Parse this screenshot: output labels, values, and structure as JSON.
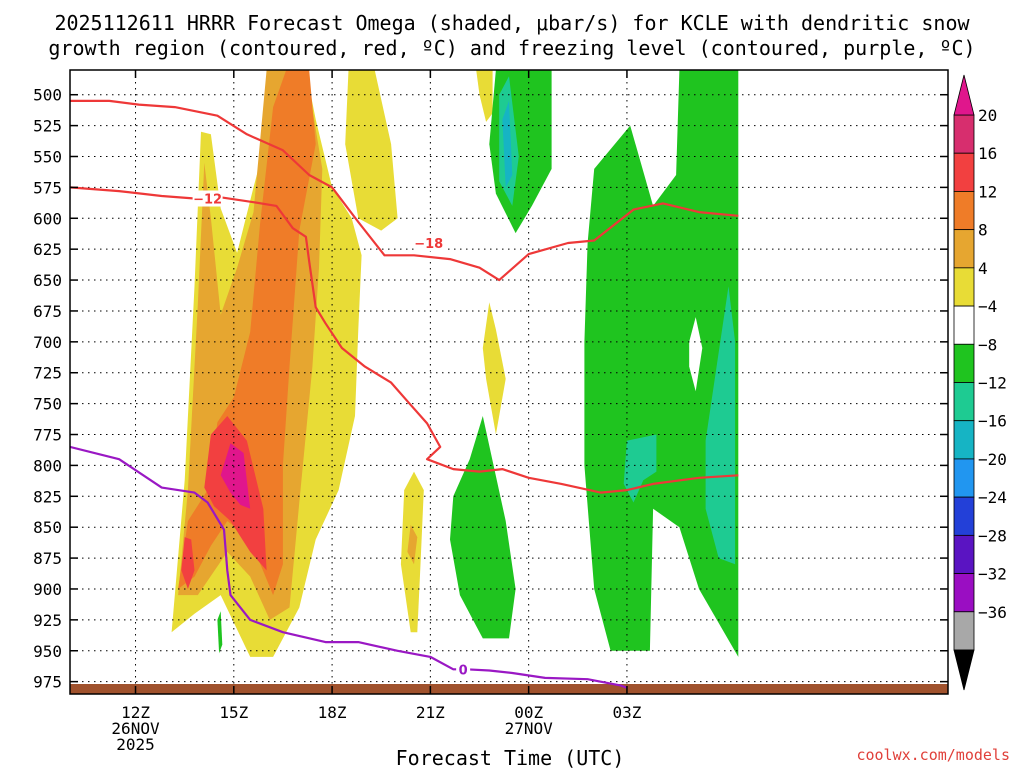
{
  "chart_data": {
    "type": "heatmap",
    "title_line1": "2025112611 HRRR Forecast Omega (shaded, μbar/s) for KCLE with dendritic snow",
    "title_line2": "growth region (contoured, red, ºC) and freezing level (contoured, purple, ºC)",
    "xlabel": "Forecast Time (UTC)",
    "ylabel": "",
    "credit": "coolwx.com/models",
    "y_ticks": [
      500,
      525,
      550,
      575,
      600,
      625,
      650,
      675,
      700,
      725,
      750,
      775,
      800,
      825,
      850,
      875,
      900,
      925,
      950,
      975
    ],
    "y_range_hpa": [
      480,
      985
    ],
    "x_range_hours": [
      10,
      36.8
    ],
    "x_ticks": [
      {
        "hour": 12,
        "line1": "12Z",
        "line2": "26NOV",
        "line3": "2025"
      },
      {
        "hour": 15,
        "line1": "15Z",
        "line2": "",
        "line3": ""
      },
      {
        "hour": 18,
        "line1": "18Z",
        "line2": "",
        "line3": ""
      },
      {
        "hour": 21,
        "line1": "21Z",
        "line2": "",
        "line3": ""
      },
      {
        "hour": 24,
        "line1": "00Z",
        "line2": "27NOV",
        "line3": ""
      },
      {
        "hour": 27,
        "line1": "03Z",
        "line2": "",
        "line3": ""
      }
    ],
    "colorbar": {
      "labels": [
        "20",
        "16",
        "12",
        "8",
        "4",
        "−4",
        "−8",
        "−12",
        "−16",
        "−20",
        "−24",
        "−28",
        "−32",
        "−36"
      ],
      "colors": [
        "#d72e6e",
        "#f24040",
        "#ef7c28",
        "#e6a630",
        "#e8dc36",
        "#ffffff",
        "#1fc41f",
        "#1ecb92",
        "#16b4c4",
        "#2196f0",
        "#2340d8",
        "#5a14c2",
        "#9a0ec2",
        "#a8a8a8"
      ],
      "top_arrow_color": "#e0168c",
      "bottom_arrow_color": "#000000"
    },
    "omega_regions": [
      {
        "level": "4 to 8",
        "color": "#e8dc36",
        "polygons": [
          [
            [
              13.1,
              935
            ],
            [
              13.5,
              812
            ],
            [
              13.8,
              655
            ],
            [
              14.0,
              530
            ],
            [
              14.3,
              532
            ],
            [
              14.6,
              592
            ],
            [
              15.1,
              628
            ],
            [
              15.6,
              575
            ],
            [
              16.0,
              535
            ],
            [
              16.2,
              480
            ],
            [
              17.2,
              480
            ],
            [
              17.5,
              520
            ],
            [
              18.0,
              575
            ],
            [
              18.6,
              600
            ],
            [
              18.9,
              630
            ],
            [
              18.8,
              690
            ],
            [
              18.7,
              760
            ],
            [
              18.2,
              820
            ],
            [
              17.5,
              860
            ],
            [
              17.0,
              915
            ],
            [
              16.2,
              955
            ],
            [
              15.5,
              955
            ],
            [
              14.6,
              905
            ],
            [
              13.8,
              920
            ]
          ],
          [
            [
              18.5,
              480
            ],
            [
              19.3,
              480
            ],
            [
              19.8,
              540
            ],
            [
              20.0,
              600
            ],
            [
              19.5,
              610
            ],
            [
              18.8,
              600
            ],
            [
              18.4,
              540
            ]
          ],
          [
            [
              22.4,
              480
            ],
            [
              22.9,
              480
            ],
            [
              22.9,
              515
            ],
            [
              22.7,
              522
            ],
            [
              22.5,
              500
            ]
          ],
          [
            [
              20.2,
              820
            ],
            [
              20.5,
              805
            ],
            [
              20.8,
              820
            ],
            [
              20.7,
              880
            ],
            [
              20.6,
              935
            ],
            [
              20.4,
              935
            ],
            [
              20.1,
              880
            ]
          ],
          [
            [
              22.6,
              705
            ],
            [
              22.8,
              668
            ],
            [
              23.0,
              690
            ],
            [
              23.3,
              730
            ],
            [
              23.0,
              775
            ],
            [
              22.7,
              730
            ]
          ]
        ]
      },
      {
        "level": "8 to 12",
        "color": "#e6a630",
        "polygons": [
          [
            [
              13.3,
              905
            ],
            [
              13.6,
              820
            ],
            [
              13.9,
              670
            ],
            [
              14.1,
              555
            ],
            [
              14.3,
              600
            ],
            [
              14.6,
              678
            ],
            [
              15.1,
              640
            ],
            [
              15.6,
              595
            ],
            [
              16.0,
              480
            ],
            [
              17.2,
              480
            ],
            [
              17.7,
              560
            ],
            [
              17.6,
              640
            ],
            [
              17.4,
              720
            ],
            [
              17.0,
              830
            ],
            [
              16.7,
              915
            ],
            [
              16.1,
              925
            ],
            [
              15.5,
              890
            ],
            [
              14.8,
              870
            ],
            [
              13.9,
              905
            ]
          ],
          [
            [
              20.4,
              848
            ],
            [
              20.6,
              858
            ],
            [
              20.5,
              880
            ],
            [
              20.3,
              870
            ]
          ]
        ]
      },
      {
        "level": "12 to 16",
        "color": "#ef7c28",
        "polygons": [
          [
            [
              13.3,
              900
            ],
            [
              13.6,
              845
            ],
            [
              14.2,
              820
            ],
            [
              14.5,
              765
            ],
            [
              15.0,
              745
            ],
            [
              15.5,
              692
            ],
            [
              15.8,
              605
            ],
            [
              16.2,
              510
            ],
            [
              16.6,
              480
            ],
            [
              17.3,
              480
            ],
            [
              17.5,
              540
            ],
            [
              17.0,
              610
            ],
            [
              16.7,
              720
            ],
            [
              16.5,
              800
            ],
            [
              16.5,
              880
            ],
            [
              16.2,
              905
            ],
            [
              15.5,
              860
            ],
            [
              14.8,
              845
            ],
            [
              14.3,
              865
            ],
            [
              13.8,
              890
            ]
          ]
        ]
      },
      {
        "level": "16 to 20",
        "color": "#f24040",
        "polygons": [
          [
            [
              13.4,
              885
            ],
            [
              13.5,
              858
            ],
            [
              13.7,
              860
            ],
            [
              13.8,
              885
            ],
            [
              13.6,
              900
            ]
          ],
          [
            [
              14.1,
              818
            ],
            [
              14.3,
              775
            ],
            [
              14.8,
              760
            ],
            [
              15.4,
              780
            ],
            [
              15.9,
              835
            ],
            [
              16.0,
              885
            ],
            [
              15.5,
              870
            ],
            [
              14.9,
              845
            ],
            [
              14.4,
              833
            ]
          ]
        ]
      },
      {
        "level": "> 20",
        "color": "#e0168c",
        "polygons": [
          [
            [
              14.6,
              808
            ],
            [
              14.9,
              782
            ],
            [
              15.3,
              790
            ],
            [
              15.5,
              835
            ],
            [
              15.2,
              832
            ],
            [
              14.9,
              822
            ]
          ]
        ]
      },
      {
        "level": "-4 to -8",
        "color": "#1fc41f",
        "polygons": [
          [
            [
              23.0,
              480
            ],
            [
              24.7,
              480
            ],
            [
              24.7,
              560
            ],
            [
              24.1,
              590
            ],
            [
              23.6,
              612
            ],
            [
              23.0,
              580
            ],
            [
              22.8,
              540
            ]
          ],
          [
            [
              26.0,
              560
            ],
            [
              27.1,
              525
            ],
            [
              27.8,
              590
            ],
            [
              28.5,
              565
            ],
            [
              28.6,
              480
            ],
            [
              30.4,
              480
            ],
            [
              30.4,
              955
            ],
            [
              29.2,
              900
            ],
            [
              28.6,
              850
            ],
            [
              27.8,
              835
            ],
            [
              27.7,
              950
            ],
            [
              26.5,
              950
            ],
            [
              26.0,
              900
            ],
            [
              25.7,
              800
            ],
            [
              25.7,
              700
            ],
            [
              25.8,
              620
            ]
          ],
          [
            [
              21.7,
              825
            ],
            [
              22.2,
              795
            ],
            [
              22.6,
              760
            ],
            [
              23.3,
              845
            ],
            [
              23.6,
              900
            ],
            [
              23.4,
              940
            ],
            [
              22.6,
              940
            ],
            [
              21.9,
              905
            ],
            [
              21.6,
              860
            ]
          ],
          [
            [
              14.5,
              925
            ],
            [
              14.6,
              918
            ],
            [
              14.65,
              945
            ],
            [
              14.55,
              952
            ]
          ]
        ]
      },
      {
        "level": "-8 to -12",
        "color": "#1ecb92",
        "polygons": [
          [
            [
              23.1,
              500
            ],
            [
              23.4,
              485
            ],
            [
              23.7,
              550
            ],
            [
              23.5,
              590
            ],
            [
              23.1,
              570
            ]
          ],
          [
            [
              27.0,
              780
            ],
            [
              27.9,
              775
            ],
            [
              27.9,
              805
            ],
            [
              27.5,
              812
            ],
            [
              27.2,
              830
            ],
            [
              26.9,
              815
            ]
          ],
          [
            [
              29.4,
              780
            ],
            [
              30.1,
              655
            ],
            [
              30.3,
              700
            ],
            [
              30.3,
              880
            ],
            [
              29.8,
              875
            ],
            [
              29.4,
              835
            ]
          ]
        ]
      },
      {
        "level": "-12 to -16",
        "color": "#16b4c4",
        "polygons": [
          [
            [
              23.2,
              520
            ],
            [
              23.4,
              505
            ],
            [
              23.5,
              565
            ],
            [
              23.3,
              575
            ]
          ]
        ]
      }
    ],
    "white_holes": [
      [
        [
          28.9,
          700
        ],
        [
          29.1,
          680
        ],
        [
          29.3,
          705
        ],
        [
          29.1,
          740
        ],
        [
          28.9,
          720
        ]
      ]
    ],
    "contours": [
      {
        "name": "-18",
        "color": "#ee3838",
        "label": "−18",
        "label_at": [
          20.95,
          620
        ],
        "points": [
          [
            10,
            505
          ],
          [
            11.2,
            505
          ],
          [
            12.1,
            508
          ],
          [
            13.2,
            510
          ],
          [
            14.5,
            517
          ],
          [
            15.4,
            532
          ],
          [
            16.5,
            545
          ],
          [
            17.3,
            565
          ],
          [
            18,
            575
          ],
          [
            18.8,
            603
          ],
          [
            19.6,
            630
          ],
          [
            20.5,
            630
          ],
          [
            21.6,
            633
          ],
          [
            22.5,
            640
          ],
          [
            23.1,
            650
          ],
          [
            24.0,
            629
          ],
          [
            25.2,
            620
          ],
          [
            26.0,
            618
          ],
          [
            27.2,
            593
          ],
          [
            28.1,
            588
          ],
          [
            29.2,
            595
          ],
          [
            30.4,
            598
          ]
        ]
      },
      {
        "name": "-12 upper",
        "color": "#ee3838",
        "label": "−12",
        "label_at": [
          14.2,
          584
        ],
        "points": [
          [
            10,
            575
          ],
          [
            11.5,
            578
          ],
          [
            12.8,
            582
          ],
          [
            13.8,
            584
          ],
          [
            14.6,
            583
          ],
          [
            15.6,
            587
          ],
          [
            16.3,
            590
          ],
          [
            16.8,
            608
          ],
          [
            17.2,
            615
          ],
          [
            17.3,
            635
          ],
          [
            17.5,
            672
          ],
          [
            17.8,
            685
          ],
          [
            18.3,
            705
          ],
          [
            19.0,
            720
          ],
          [
            19.8,
            733
          ],
          [
            20.3,
            748
          ],
          [
            20.9,
            766
          ],
          [
            21.3,
            785
          ],
          [
            20.9,
            795
          ],
          [
            21.7,
            803
          ],
          [
            22.5,
            805
          ],
          [
            23.2,
            803
          ],
          [
            24.0,
            810
          ],
          [
            25.0,
            815
          ],
          [
            26.2,
            822
          ],
          [
            27.0,
            820
          ],
          [
            27.8,
            815
          ],
          [
            29.2,
            810
          ],
          [
            30.4,
            808
          ]
        ]
      },
      {
        "name": "0",
        "color": "#9a18c4",
        "label": "0",
        "label_at": [
          22.0,
          965
        ],
        "points": [
          [
            10,
            785
          ],
          [
            11.5,
            795
          ],
          [
            12.8,
            818
          ],
          [
            13.8,
            822
          ],
          [
            14.2,
            830
          ],
          [
            14.7,
            852
          ],
          [
            14.8,
            885
          ],
          [
            14.9,
            905
          ],
          [
            15.5,
            925
          ],
          [
            16.5,
            935
          ],
          [
            17.8,
            943
          ],
          [
            18.8,
            943
          ],
          [
            20.0,
            950
          ],
          [
            21.0,
            955
          ],
          [
            21.7,
            965
          ],
          [
            22.1,
            965
          ],
          [
            22.8,
            966
          ],
          [
            23.5,
            968
          ],
          [
            24.5,
            972
          ],
          [
            25.8,
            973
          ],
          [
            26.8,
            978
          ],
          [
            27.0,
            980
          ]
        ]
      }
    ],
    "ground_color": "#a0522d"
  }
}
